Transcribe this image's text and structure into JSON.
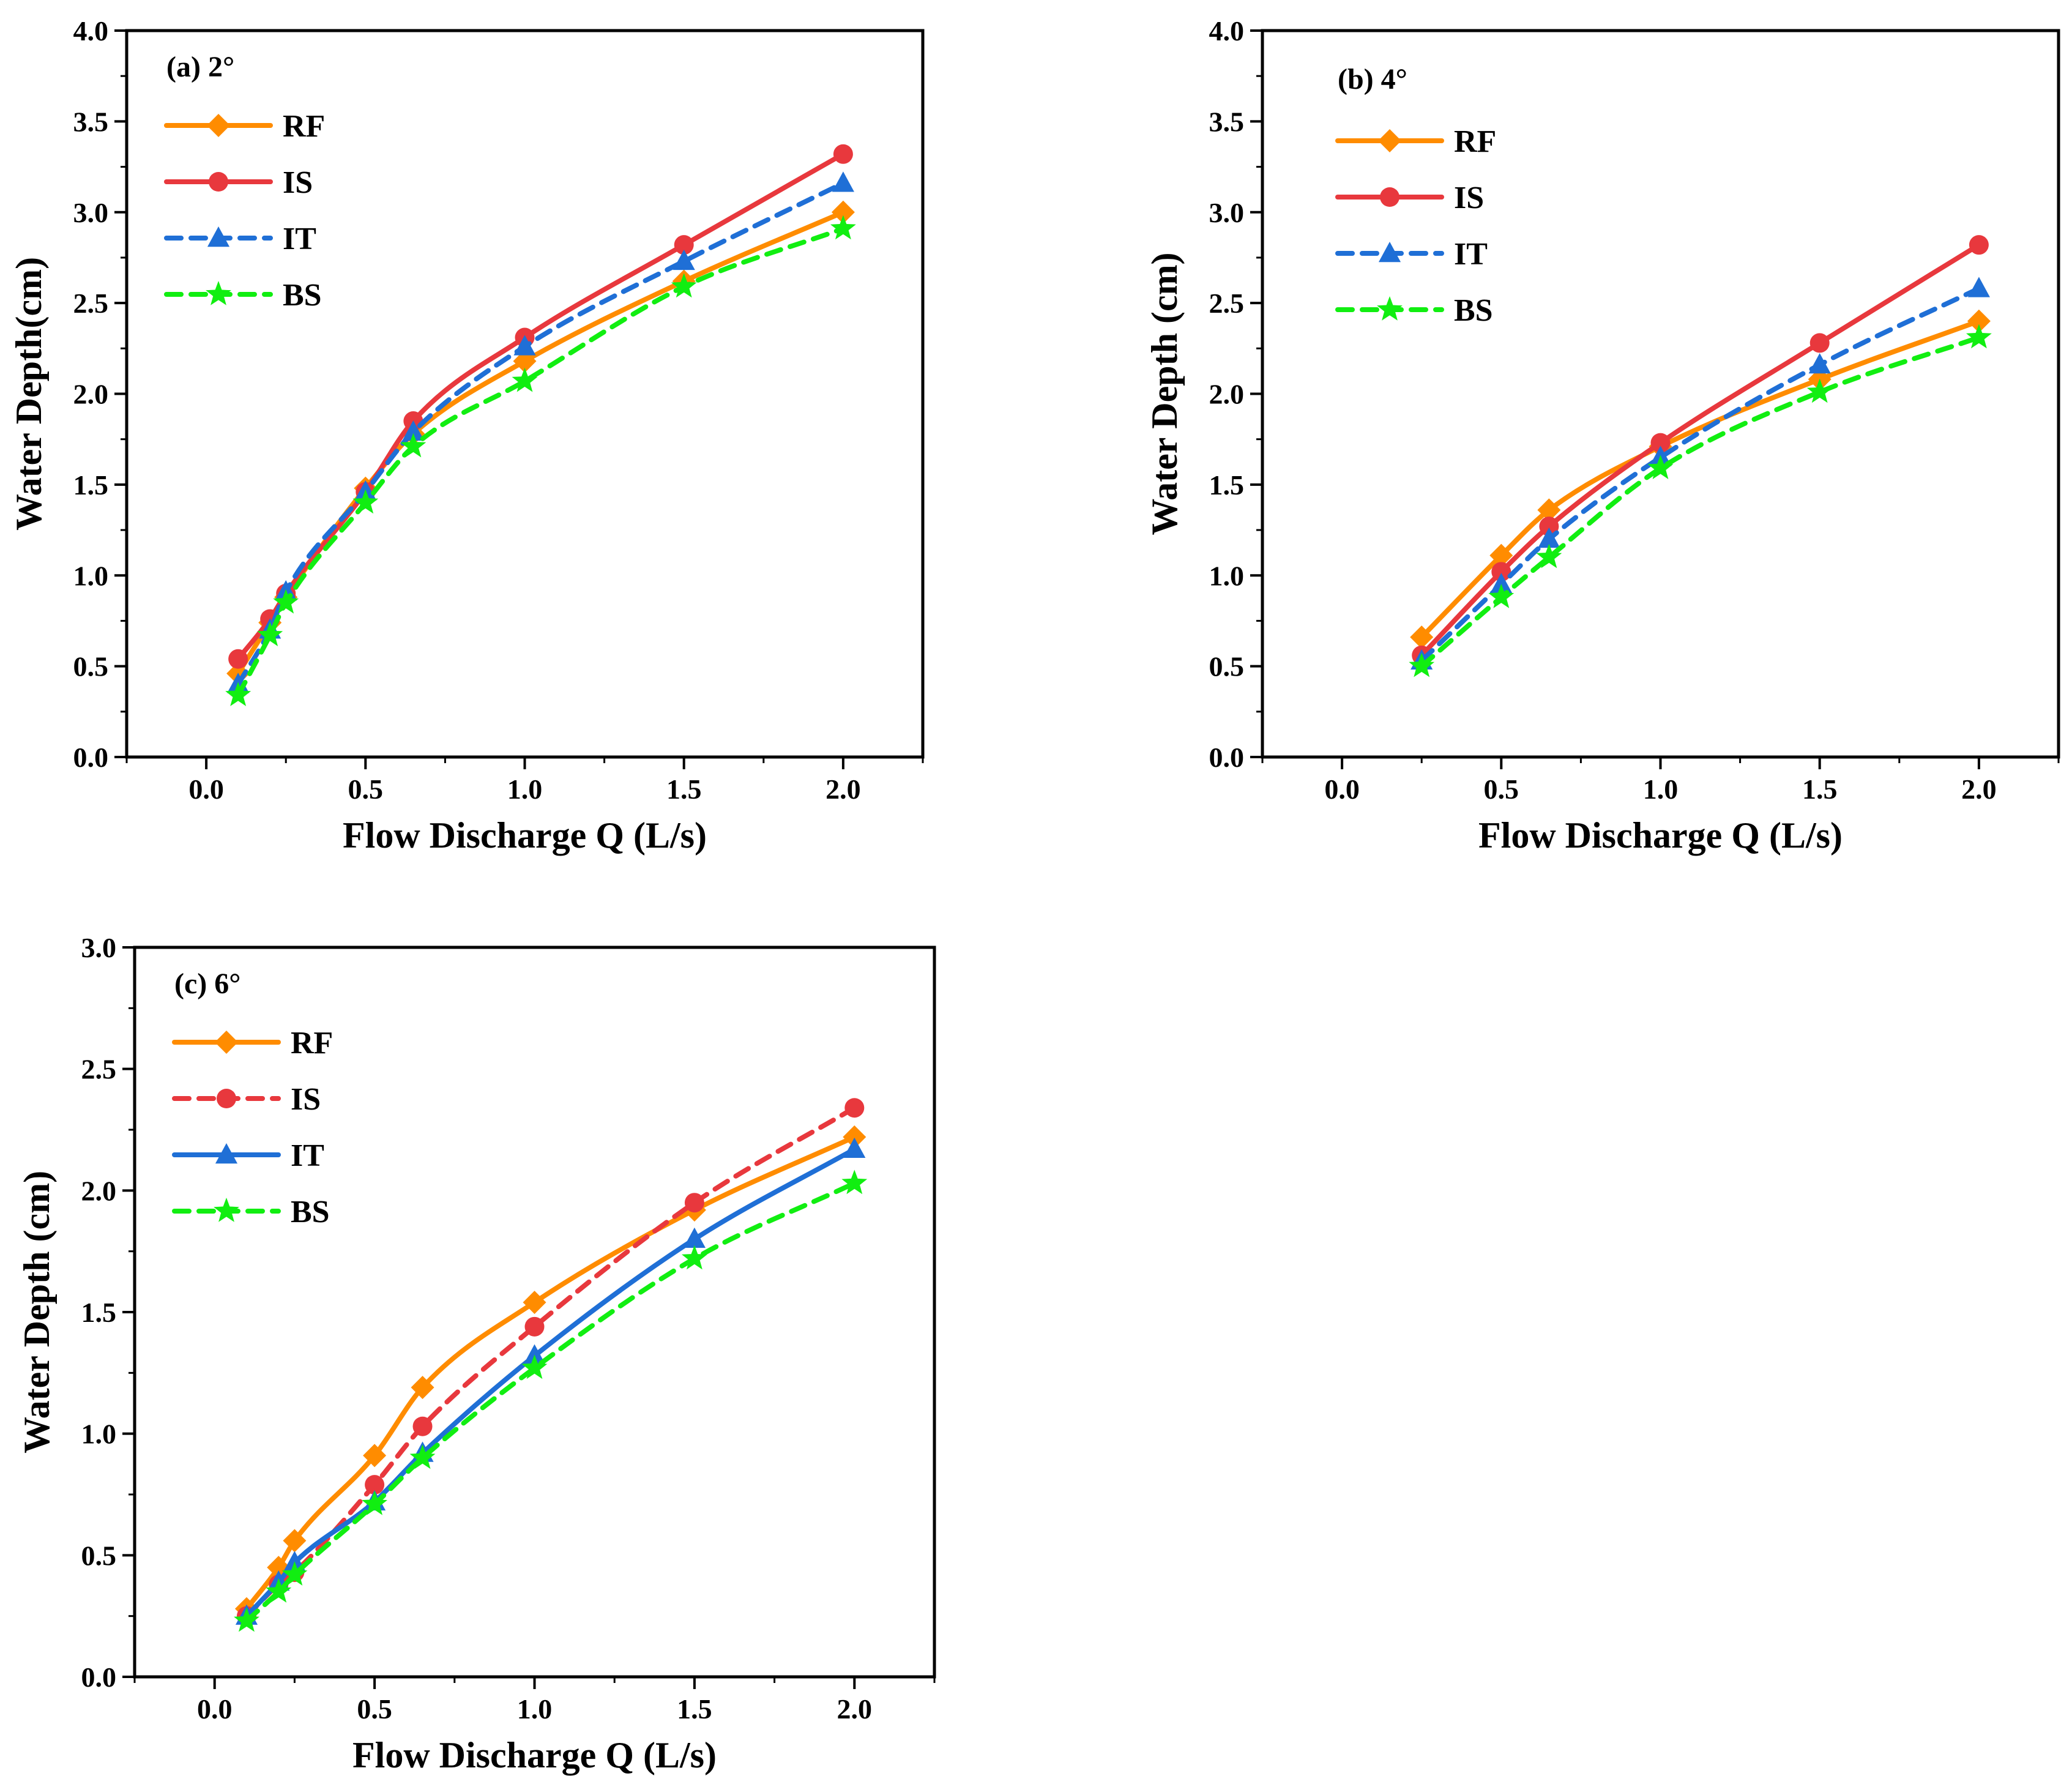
{
  "colors": {
    "RF": "#ff8c00",
    "IS": "#e8383d",
    "IT": "#1f6fd6",
    "BS": "#11ee11"
  },
  "chart_data": [
    {
      "type": "line",
      "panel": "a",
      "title": "(a)  2°",
      "xlabel": "Flow Discharge Q (L/s)",
      "ylabel": "Water Depth(cm)",
      "xlim": [
        -0.25,
        2.25
      ],
      "ylim": [
        0.0,
        4.0
      ],
      "xticks": [
        "0.0",
        "0.5",
        "1.0",
        "1.5",
        "2.0"
      ],
      "yticks": [
        "0.0",
        "0.5",
        "1.0",
        "1.5",
        "2.0",
        "2.5",
        "3.0",
        "3.5",
        "4.0"
      ],
      "legend_position": "top-left",
      "series": [
        {
          "name": "RF",
          "color_key": "RF",
          "marker": "diamond",
          "dashed": false,
          "x": [
            0.1,
            0.2,
            0.25,
            0.5,
            0.65,
            1.0,
            1.5,
            2.0
          ],
          "y": [
            0.46,
            0.74,
            0.88,
            1.48,
            1.78,
            2.18,
            2.62,
            3.0
          ]
        },
        {
          "name": "IS",
          "color_key": "IS",
          "marker": "circle",
          "dashed": false,
          "x": [
            0.1,
            0.2,
            0.25,
            0.5,
            0.65,
            1.0,
            1.5,
            2.0
          ],
          "y": [
            0.54,
            0.76,
            0.9,
            1.46,
            1.85,
            2.31,
            2.82,
            3.32
          ]
        },
        {
          "name": "IT",
          "color_key": "IT",
          "marker": "triangle",
          "dashed": true,
          "x": [
            0.1,
            0.2,
            0.25,
            0.5,
            0.65,
            1.0,
            1.5,
            2.0
          ],
          "y": [
            0.4,
            0.7,
            0.91,
            1.46,
            1.79,
            2.26,
            2.73,
            3.16
          ]
        },
        {
          "name": "BS",
          "color_key": "BS",
          "marker": "star",
          "dashed": true,
          "x": [
            0.1,
            0.2,
            0.25,
            0.5,
            0.65,
            1.0,
            1.5,
            2.0
          ],
          "y": [
            0.34,
            0.67,
            0.85,
            1.4,
            1.71,
            2.07,
            2.59,
            2.91
          ]
        }
      ]
    },
    {
      "type": "line",
      "panel": "b",
      "title": "(b)  4°",
      "xlabel": "Flow Discharge Q (L/s)",
      "ylabel": "Water Depth (cm)",
      "xlim": [
        -0.25,
        2.25
      ],
      "ylim": [
        0.0,
        4.0
      ],
      "xticks": [
        "0.0",
        "0.5",
        "1.0",
        "1.5",
        "2.0"
      ],
      "yticks": [
        "0.0",
        "0.5",
        "1.0",
        "1.5",
        "2.0",
        "2.5",
        "3.0",
        "3.5",
        "4.0"
      ],
      "legend_position": "top-left",
      "series": [
        {
          "name": "RF",
          "color_key": "RF",
          "marker": "diamond",
          "dashed": false,
          "x": [
            0.25,
            0.5,
            0.65,
            1.0,
            1.5,
            2.0
          ],
          "y": [
            0.66,
            1.11,
            1.36,
            1.71,
            2.08,
            2.4
          ]
        },
        {
          "name": "IS",
          "color_key": "IS",
          "marker": "circle",
          "dashed": false,
          "x": [
            0.25,
            0.5,
            0.65,
            1.0,
            1.5,
            2.0
          ],
          "y": [
            0.56,
            1.02,
            1.27,
            1.73,
            2.28,
            2.82
          ]
        },
        {
          "name": "IT",
          "color_key": "IT",
          "marker": "triangle",
          "dashed": true,
          "x": [
            0.25,
            0.5,
            0.65,
            1.0,
            1.5,
            2.0
          ],
          "y": [
            0.53,
            0.95,
            1.2,
            1.65,
            2.16,
            2.58
          ]
        },
        {
          "name": "BS",
          "color_key": "BS",
          "marker": "star",
          "dashed": true,
          "x": [
            0.25,
            0.5,
            0.65,
            1.0,
            1.5,
            2.0
          ],
          "y": [
            0.5,
            0.88,
            1.1,
            1.59,
            2.01,
            2.31
          ]
        }
      ]
    },
    {
      "type": "line",
      "panel": "c",
      "title": "(c)  6°",
      "xlabel": "Flow Discharge Q (L/s)",
      "ylabel": "Water Depth (cm)",
      "xlim": [
        -0.25,
        2.25
      ],
      "ylim": [
        0.0,
        3.0
      ],
      "xticks": [
        "0.0",
        "0.5",
        "1.0",
        "1.5",
        "2.0"
      ],
      "yticks": [
        "0.0",
        "0.5",
        "1.0",
        "1.5",
        "2.0",
        "2.5",
        "3.0"
      ],
      "legend_position": "top-left",
      "series": [
        {
          "name": "RF",
          "color_key": "RF",
          "marker": "diamond",
          "dashed": false,
          "x": [
            0.1,
            0.2,
            0.25,
            0.5,
            0.65,
            1.0,
            1.5,
            2.0
          ],
          "y": [
            0.28,
            0.45,
            0.56,
            0.91,
            1.19,
            1.54,
            1.92,
            2.22
          ]
        },
        {
          "name": "IS",
          "color_key": "IS",
          "marker": "circle",
          "dashed": true,
          "x": [
            0.1,
            0.2,
            0.25,
            0.5,
            0.65,
            1.0,
            1.5,
            2.0
          ],
          "y": [
            0.25,
            0.38,
            0.43,
            0.79,
            1.03,
            1.44,
            1.95,
            2.34
          ]
        },
        {
          "name": "IT",
          "color_key": "IT",
          "marker": "triangle",
          "dashed": false,
          "x": [
            0.1,
            0.2,
            0.25,
            0.5,
            0.65,
            1.0,
            1.5,
            2.0
          ],
          "y": [
            0.25,
            0.39,
            0.47,
            0.72,
            0.92,
            1.32,
            1.8,
            2.17
          ]
        },
        {
          "name": "BS",
          "color_key": "BS",
          "marker": "star",
          "dashed": true,
          "x": [
            0.1,
            0.2,
            0.25,
            0.5,
            0.65,
            1.0,
            1.5,
            2.0
          ],
          "y": [
            0.23,
            0.35,
            0.42,
            0.71,
            0.9,
            1.27,
            1.72,
            2.03
          ]
        }
      ]
    }
  ]
}
